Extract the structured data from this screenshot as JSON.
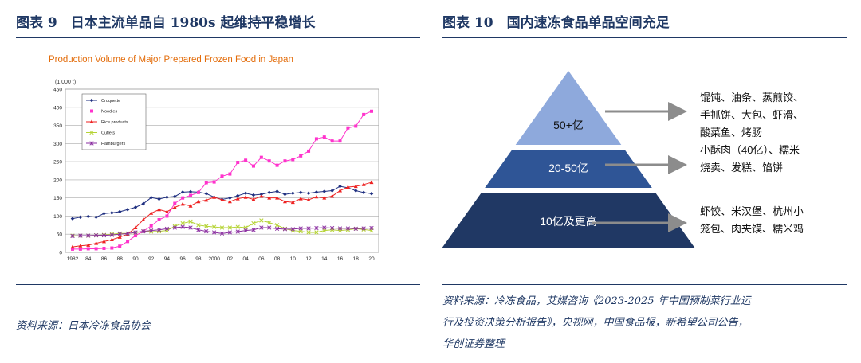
{
  "left": {
    "figure_title": "图表 9　日本主流单品自 1980s 起维持平稳增长",
    "source": "资料来源：日本冷冻食品协会"
  },
  "right": {
    "figure_title": "图表 10　国内速冻食品单品空间充足",
    "source_lines": [
      "资料来源：冷冻食品，艾媒咨询《2023-2025 年中国预制菜行业运",
      "行及投资决策分析报告》，央视网，中国食品报，新希望公司公告，",
      "华创证券整理"
    ]
  },
  "chart_data": [
    {
      "type": "line",
      "title": "Production Volume of Major Prepared Frozen Food in Japan",
      "unit_label": "(1,000 t)",
      "ylim": [
        0,
        450
      ],
      "yticks": [
        0,
        50,
        100,
        150,
        200,
        250,
        300,
        350,
        400,
        450
      ],
      "xlim": [
        1982,
        2020
      ],
      "xticks": [
        "1982",
        "84",
        "86",
        "88",
        "90",
        "92",
        "94",
        "96",
        "98",
        "2000",
        "02",
        "04",
        "06",
        "08",
        "10",
        "12",
        "14",
        "16",
        "18",
        "20"
      ],
      "grid": true,
      "legend": "top-left",
      "x": [
        1982,
        1983,
        1984,
        1985,
        1986,
        1987,
        1988,
        1989,
        1990,
        1991,
        1992,
        1993,
        1994,
        1995,
        1996,
        1997,
        1998,
        1999,
        2000,
        2001,
        2002,
        2003,
        2004,
        2005,
        2006,
        2007,
        2008,
        2009,
        2010,
        2011,
        2012,
        2013,
        2014,
        2015,
        2016,
        2017,
        2018,
        2019,
        2020
      ],
      "series": [
        {
          "name": "Croquette",
          "color": "#1f2f80",
          "marker": "diamond",
          "values": [
            93,
            97,
            99,
            97,
            107,
            109,
            112,
            118,
            124,
            134,
            151,
            147,
            152,
            154,
            166,
            167,
            166,
            162,
            152,
            146,
            150,
            156,
            163,
            158,
            160,
            165,
            168,
            160,
            163,
            165,
            163,
            166,
            168,
            170,
            182,
            178,
            170,
            165,
            162
          ]
        },
        {
          "name": "Noodles",
          "color": "#ff33cc",
          "marker": "square",
          "values": [
            9,
            9,
            10,
            10,
            11,
            12,
            17,
            30,
            46,
            58,
            73,
            90,
            100,
            135,
            150,
            157,
            165,
            192,
            194,
            210,
            216,
            248,
            254,
            238,
            262,
            252,
            240,
            252,
            256,
            266,
            279,
            313,
            318,
            307,
            307,
            343,
            348,
            380,
            389
          ]
        },
        {
          "name": "Rice products",
          "color": "#ee2222",
          "marker": "triangle",
          "values": [
            15,
            18,
            20,
            25,
            30,
            35,
            42,
            50,
            68,
            90,
            108,
            118,
            112,
            124,
            133,
            128,
            140,
            144,
            152,
            145,
            140,
            148,
            152,
            146,
            155,
            150,
            150,
            140,
            138,
            148,
            145,
            153,
            150,
            155,
            170,
            180,
            182,
            187,
            193
          ]
        },
        {
          "name": "Cutlets",
          "color": "#b5d334",
          "marker": "cross",
          "values": [
            46,
            46,
            46,
            47,
            48,
            50,
            52,
            52,
            54,
            58,
            57,
            58,
            60,
            72,
            80,
            85,
            75,
            72,
            70,
            68,
            68,
            70,
            68,
            80,
            88,
            82,
            75,
            65,
            60,
            58,
            55,
            55,
            60,
            62,
            60,
            62,
            65,
            63,
            60
          ]
        },
        {
          "name": "Hamburgers",
          "color": "#8a2ca0",
          "marker": "star",
          "values": [
            45,
            46,
            46,
            47,
            47,
            48,
            50,
            52,
            55,
            58,
            60,
            62,
            65,
            68,
            70,
            68,
            62,
            58,
            55,
            52,
            55,
            57,
            60,
            62,
            68,
            68,
            65,
            64,
            64,
            66,
            66,
            67,
            68,
            67,
            66,
            66,
            65,
            66,
            67
          ]
        }
      ]
    },
    {
      "type": "table",
      "layout": "pyramid",
      "tiers": [
        {
          "label": "50+亿",
          "items_lines": [
            "馄饨、油条、蒸煎饺、",
            "手抓饼、大包、虾滑、",
            "酸菜鱼、烤肠"
          ],
          "color": "#8ea9dc"
        },
        {
          "label": "20-50亿",
          "items_lines": [
            "小酥肉（40亿）、糯米",
            "烧卖、发糕、馅饼"
          ],
          "color": "#2f5596"
        },
        {
          "label": "10亿及更高",
          "items_lines": [
            "虾饺、米汉堡、杭州小",
            "笼包、肉夹馍、糯米鸡"
          ],
          "color": "#203864"
        }
      ]
    }
  ]
}
